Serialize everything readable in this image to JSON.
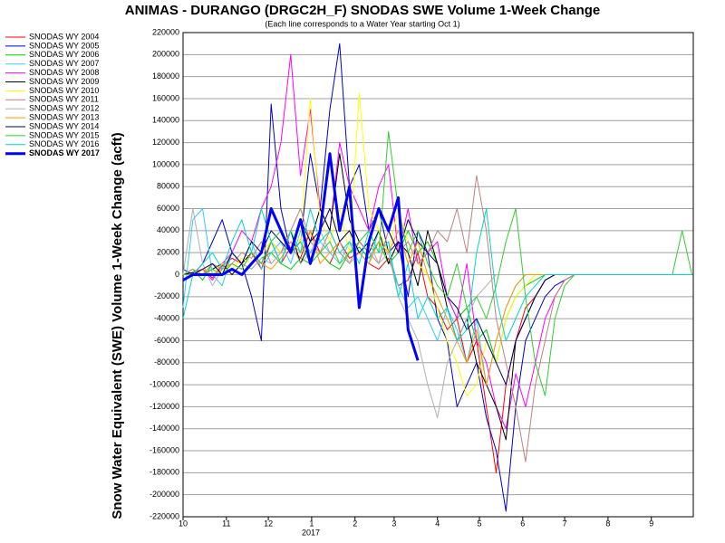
{
  "chart_data": {
    "type": "line",
    "title": "ANIMAS - DURANGO (DRGC2H_F) SNODAS SWE Volume 1-Week Change",
    "subtitle": "(Each line corresponds to a Water Year starting Oct 1)",
    "y_label": "Snow Water Equivalent (SWE) Volume 1-Week Change (acft)",
    "x_annotation": "2017",
    "grid": true,
    "legend": "top-left",
    "xlim": [
      0,
      365
    ],
    "xticks": [
      {
        "value": 0,
        "label": "10"
      },
      {
        "value": 31,
        "label": "11"
      },
      {
        "value": 61,
        "label": "12"
      },
      {
        "value": 92,
        "label": "1"
      },
      {
        "value": 123,
        "label": "2"
      },
      {
        "value": 151,
        "label": "3"
      },
      {
        "value": 182,
        "label": "4"
      },
      {
        "value": 212,
        "label": "5"
      },
      {
        "value": 243,
        "label": "6"
      },
      {
        "value": 273,
        "label": "7"
      },
      {
        "value": 304,
        "label": "8"
      },
      {
        "value": 335,
        "label": "9"
      }
    ],
    "ylim": [
      -220000,
      220000
    ],
    "yticks": [
      -220000,
      -200000,
      -180000,
      -160000,
      -140000,
      -120000,
      -100000,
      -80000,
      -60000,
      -40000,
      -20000,
      0,
      20000,
      40000,
      60000,
      80000,
      100000,
      120000,
      140000,
      160000,
      180000,
      200000,
      220000
    ],
    "x": [
      0,
      7,
      14,
      21,
      28,
      35,
      42,
      49,
      56,
      63,
      70,
      77,
      84,
      91,
      98,
      105,
      112,
      119,
      126,
      133,
      140,
      147,
      154,
      161,
      168,
      175,
      182,
      189,
      196,
      203,
      210,
      217,
      224,
      231,
      238,
      245,
      252,
      259,
      266,
      273,
      280,
      287,
      294,
      301,
      308,
      315,
      322,
      329,
      336,
      343,
      350,
      357,
      364
    ],
    "series": [
      {
        "name": "SNODAS WY 2004",
        "color": "#ff0000",
        "width": 1,
        "values": [
          0,
          2000,
          5000,
          -3000,
          8000,
          15000,
          10000,
          20000,
          5000,
          30000,
          10000,
          25000,
          15000,
          40000,
          20000,
          10000,
          30000,
          15000,
          20000,
          10000,
          5000,
          15000,
          -10000,
          -5000,
          20000,
          -20000,
          -30000,
          -50000,
          -40000,
          -80000,
          -60000,
          -120000,
          -180000,
          -100000,
          -60000,
          -30000,
          -20000,
          -5000,
          0,
          0,
          0,
          0,
          0,
          0,
          0,
          0,
          0,
          0,
          0,
          0,
          0,
          0,
          0
        ]
      },
      {
        "name": "SNODAS WY 2005",
        "color": "#0000cc",
        "width": 1,
        "values": [
          5000,
          0,
          10000,
          30000,
          50000,
          20000,
          10000,
          -20000,
          -60000,
          155000,
          60000,
          20000,
          30000,
          110000,
          60000,
          150000,
          210000,
          80000,
          100000,
          40000,
          60000,
          20000,
          30000,
          -20000,
          40000,
          20000,
          -40000,
          -60000,
          -120000,
          -100000,
          -80000,
          -130000,
          -160000,
          -215000,
          -120000,
          -60000,
          -40000,
          -20000,
          -10000,
          -5000,
          0,
          0,
          0,
          0,
          0,
          0,
          0,
          0,
          0,
          0,
          0,
          0,
          0
        ]
      },
      {
        "name": "SNODAS WY 2006",
        "color": "#00cc00",
        "width": 1,
        "values": [
          0,
          5000,
          -5000,
          10000,
          0,
          20000,
          10000,
          5000,
          15000,
          20000,
          10000,
          5000,
          15000,
          10000,
          20000,
          10000,
          5000,
          20000,
          25000,
          15000,
          30000,
          10000,
          20000,
          40000,
          20000,
          30000,
          10000,
          -20000,
          -40000,
          -30000,
          -60000,
          -50000,
          -80000,
          -40000,
          -20000,
          -10000,
          -5000,
          0,
          0,
          0,
          0,
          0,
          0,
          0,
          0,
          0,
          0,
          0,
          0,
          0,
          0,
          0,
          0
        ]
      },
      {
        "name": "SNODAS WY 2007",
        "color": "#33ccff",
        "width": 1,
        "values": [
          -30000,
          50000,
          60000,
          0,
          -10000,
          20000,
          10000,
          30000,
          5000,
          20000,
          30000,
          10000,
          40000,
          20000,
          30000,
          20000,
          10000,
          30000,
          20000,
          10000,
          40000,
          20000,
          -10000,
          -30000,
          -20000,
          -40000,
          -60000,
          -30000,
          -50000,
          -80000,
          -40000,
          -100000,
          -60000,
          -30000,
          -10000,
          0,
          0,
          0,
          0,
          0,
          0,
          0,
          0,
          0,
          0,
          0,
          0,
          0,
          0,
          0,
          0,
          0,
          0
        ]
      },
      {
        "name": "SNODAS WY 2008",
        "color": "#ff00ff",
        "width": 1,
        "values": [
          0,
          0,
          5000,
          -5000,
          10000,
          20000,
          40000,
          30000,
          60000,
          80000,
          120000,
          200000,
          90000,
          150000,
          60000,
          40000,
          120000,
          80000,
          60000,
          40000,
          80000,
          100000,
          20000,
          60000,
          10000,
          20000,
          30000,
          -20000,
          -40000,
          10000,
          -60000,
          -80000,
          -120000,
          -140000,
          -90000,
          -120000,
          -80000,
          -40000,
          -20000,
          -5000,
          0,
          0,
          0,
          0,
          0,
          0,
          0,
          0,
          0,
          0,
          0,
          0,
          0
        ]
      },
      {
        "name": "SNODAS WY 2009",
        "color": "#000000",
        "width": 1,
        "values": [
          0,
          2000,
          0,
          5000,
          10000,
          0,
          10000,
          20000,
          10000,
          30000,
          20000,
          40000,
          10000,
          30000,
          60000,
          40000,
          110000,
          50000,
          30000,
          20000,
          40000,
          10000,
          30000,
          20000,
          -10000,
          40000,
          10000,
          -30000,
          -60000,
          -40000,
          -80000,
          -100000,
          -120000,
          -150000,
          -60000,
          -40000,
          -20000,
          -5000,
          0,
          0,
          0,
          0,
          0,
          0,
          0,
          0,
          0,
          0,
          0,
          0,
          0,
          0,
          0
        ]
      },
      {
        "name": "SNODAS WY 2010",
        "color": "#ffff00",
        "width": 1,
        "values": [
          0,
          0,
          5000,
          0,
          10000,
          5000,
          15000,
          10000,
          20000,
          30000,
          20000,
          40000,
          30000,
          160000,
          50000,
          30000,
          60000,
          20000,
          165000,
          60000,
          40000,
          20000,
          60000,
          30000,
          10000,
          0,
          -30000,
          -60000,
          -80000,
          -110000,
          -100000,
          -60000,
          -80000,
          -40000,
          -20000,
          -10000,
          0,
          0,
          0,
          0,
          0,
          0,
          0,
          0,
          0,
          0,
          0,
          0,
          0,
          0,
          0,
          0,
          0
        ]
      },
      {
        "name": "SNODAS WY 2011",
        "color": "#c08080",
        "width": 1,
        "values": [
          0,
          5000,
          0,
          10000,
          5000,
          10000,
          20000,
          15000,
          30000,
          10000,
          20000,
          40000,
          60000,
          30000,
          20000,
          40000,
          20000,
          10000,
          30000,
          20000,
          10000,
          40000,
          20000,
          30000,
          10000,
          20000,
          40000,
          30000,
          60000,
          20000,
          90000,
          40000,
          -40000,
          -80000,
          -120000,
          -170000,
          -100000,
          -60000,
          -20000,
          -5000,
          0,
          0,
          0,
          0,
          0,
          0,
          0,
          0,
          0,
          0,
          0,
          0,
          0
        ]
      },
      {
        "name": "SNODAS WY 2012",
        "color": "#b0b0b0",
        "width": 1,
        "values": [
          0,
          60000,
          10000,
          -10000,
          5000,
          20000,
          10000,
          5000,
          15000,
          10000,
          20000,
          30000,
          10000,
          20000,
          40000,
          20000,
          30000,
          10000,
          20000,
          30000,
          10000,
          20000,
          -20000,
          -40000,
          -60000,
          -100000,
          -130000,
          -80000,
          -60000,
          -40000,
          -20000,
          -10000,
          0,
          0,
          0,
          0,
          0,
          0,
          0,
          0,
          0,
          0,
          0,
          0,
          0,
          0,
          0,
          0,
          0,
          0,
          0,
          0,
          0
        ]
      },
      {
        "name": "SNODAS WY 2013",
        "color": "#ff9900",
        "width": 1,
        "values": [
          0,
          0,
          5000,
          0,
          5000,
          10000,
          5000,
          20000,
          10000,
          5000,
          15000,
          30000,
          20000,
          40000,
          10000,
          20000,
          30000,
          40000,
          20000,
          10000,
          30000,
          20000,
          40000,
          10000,
          30000,
          0,
          -20000,
          -40000,
          -60000,
          -80000,
          -50000,
          -100000,
          -60000,
          -30000,
          -10000,
          0,
          0,
          0,
          0,
          0,
          0,
          0,
          0,
          0,
          0,
          0,
          0,
          0,
          0,
          0,
          0,
          0,
          0
        ]
      },
      {
        "name": "SNODAS WY 2014",
        "color": "#000066",
        "width": 1,
        "values": [
          0,
          0,
          5000,
          10000,
          0,
          20000,
          10000,
          30000,
          20000,
          40000,
          30000,
          20000,
          50000,
          30000,
          40000,
          60000,
          30000,
          40000,
          20000,
          30000,
          60000,
          40000,
          20000,
          50000,
          30000,
          20000,
          10000,
          -20000,
          -30000,
          -50000,
          -40000,
          -60000,
          -80000,
          -100000,
          -60000,
          -40000,
          -20000,
          -5000,
          0,
          0,
          0,
          0,
          0,
          0,
          0,
          0,
          0,
          0,
          0,
          0,
          0,
          0,
          0
        ]
      },
      {
        "name": "SNODAS WY 2015",
        "color": "#33cc33",
        "width": 1,
        "values": [
          0,
          0,
          0,
          5000,
          0,
          10000,
          5000,
          20000,
          10000,
          30000,
          40000,
          20000,
          30000,
          10000,
          20000,
          30000,
          10000,
          20000,
          30000,
          40000,
          20000,
          130000,
          60000,
          20000,
          40000,
          10000,
          -10000,
          -20000,
          10000,
          -30000,
          -20000,
          -40000,
          -10000,
          30000,
          60000,
          -20000,
          -80000,
          -110000,
          -40000,
          -10000,
          0,
          0,
          0,
          0,
          0,
          0,
          0,
          0,
          0,
          0,
          0,
          40000,
          0
        ]
      },
      {
        "name": "SNODAS WY 2016",
        "color": "#00d8c8",
        "width": 1,
        "values": [
          -40000,
          0,
          10000,
          20000,
          5000,
          30000,
          50000,
          20000,
          60000,
          30000,
          10000,
          40000,
          20000,
          60000,
          30000,
          40000,
          20000,
          30000,
          10000,
          40000,
          20000,
          30000,
          -20000,
          10000,
          -40000,
          -20000,
          -40000,
          -30000,
          -60000,
          -50000,
          20000,
          60000,
          -20000,
          -60000,
          -40000,
          -20000,
          -10000,
          0,
          0,
          0,
          0,
          0,
          0,
          0,
          0,
          0,
          0,
          0,
          0,
          0,
          0,
          0,
          0
        ]
      },
      {
        "name": "SNODAS WY 2017",
        "color": "#0000ff",
        "width": 3,
        "values": [
          -5000,
          0,
          0,
          0,
          0,
          5000,
          0,
          10000,
          20000,
          60000,
          40000,
          20000,
          50000,
          10000,
          40000,
          110000,
          40000,
          80000,
          -30000,
          30000,
          60000,
          40000,
          70000,
          -50000,
          -78000,
          null,
          null,
          null,
          null,
          null,
          null,
          null,
          null,
          null,
          null,
          null,
          null,
          null,
          null,
          null,
          null,
          null,
          null,
          null,
          null,
          null,
          null,
          null,
          null,
          null,
          null,
          null,
          null
        ]
      }
    ]
  }
}
